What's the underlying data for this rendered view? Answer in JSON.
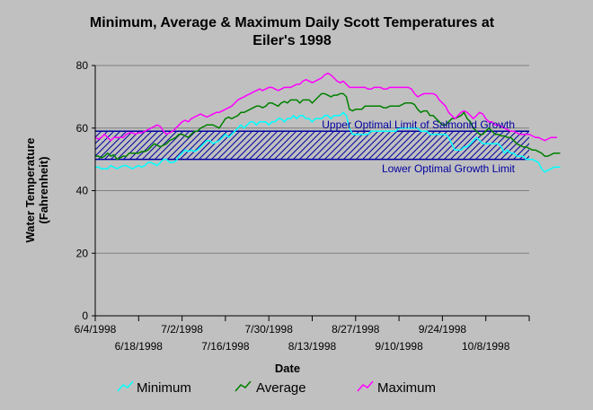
{
  "chart_data": {
    "type": "line",
    "title_lines": [
      "Minimum, Average & Maximum Daily Scott Temperatures at",
      "Eiler's 1998"
    ],
    "xlabel": "Date",
    "ylabel_lines": [
      "Water Temperature",
      "(Fahrenheit)"
    ],
    "ylim": [
      0,
      80
    ],
    "y_ticks": [
      0,
      20,
      40,
      60,
      80
    ],
    "x_start": "6/4/1998",
    "x_end": "10/22/1998",
    "x_ticks_upper": [
      "6/4/1998",
      "7/2/1998",
      "7/30/1998",
      "8/27/1998",
      "9/24/1998"
    ],
    "x_ticks_lower": [
      "6/18/1998",
      "7/16/1998",
      "8/13/1998",
      "9/10/1998",
      "10/8/1998"
    ],
    "grid": "horizontal",
    "reference_band": {
      "upper": 59,
      "lower": 50,
      "upper_label": "Upper Optimal Limit of Salmonid Growth",
      "lower_label": "Lower Optimal Growth Limit",
      "color": "#0000a0"
    },
    "series": [
      {
        "name": "Minimum",
        "color": "#00ffff",
        "values": [
          47.5,
          47.5,
          47,
          47,
          47,
          48,
          47.5,
          47,
          47.5,
          48,
          48,
          47.5,
          47,
          47.5,
          48,
          47.5,
          48,
          49,
          49,
          48.5,
          48,
          49,
          50,
          50,
          49,
          49,
          49.5,
          51,
          52,
          53,
          52.5,
          53,
          52.5,
          53,
          54,
          55,
          56,
          56,
          55,
          55.5,
          56,
          57,
          58,
          57,
          58,
          59,
          60,
          61,
          60,
          61,
          62,
          62,
          61,
          62,
          62,
          62,
          61,
          62,
          62,
          63,
          63,
          62,
          63,
          63,
          64,
          63,
          64,
          64,
          63,
          63,
          62,
          63,
          63,
          63,
          64,
          64,
          63,
          64,
          64,
          64,
          65,
          64,
          60,
          58,
          58,
          58,
          58,
          58,
          58,
          59,
          59,
          59,
          59,
          59,
          59,
          59,
          59,
          59,
          60,
          60,
          60,
          60,
          60,
          60,
          60,
          59,
          59,
          59,
          58,
          58,
          58,
          58,
          58,
          58,
          57,
          55,
          53,
          53,
          53,
          54,
          54,
          55,
          56,
          57,
          56,
          55,
          55,
          55,
          55,
          55,
          55,
          54,
          52,
          53,
          52,
          52,
          51,
          51,
          51,
          50,
          50,
          50,
          49.5,
          49,
          47,
          46,
          46.5,
          47,
          47.5,
          47.5,
          47.5
        ]
      },
      {
        "name": "Average",
        "color": "#008000",
        "values": [
          51,
          51,
          50.5,
          51,
          52,
          51,
          51.5,
          50,
          50.5,
          51,
          51,
          52,
          52,
          52,
          52,
          52.5,
          52.5,
          53,
          54,
          55,
          54.5,
          54,
          54.5,
          55,
          56,
          56.5,
          57,
          58,
          58,
          57.5,
          57,
          58,
          59,
          59,
          60,
          60.5,
          61,
          61,
          61,
          60.5,
          60,
          61.5,
          63,
          63.5,
          63,
          63.5,
          64,
          65,
          65,
          65.5,
          66,
          66.5,
          67,
          67,
          66.5,
          67,
          68,
          68,
          67.5,
          67,
          68,
          68.5,
          68,
          69,
          69,
          69,
          68,
          69,
          69,
          69,
          68,
          69,
          70,
          71,
          71,
          70.5,
          70,
          70.5,
          70.5,
          71,
          71,
          70,
          66,
          65.5,
          66,
          66,
          66,
          67,
          67,
          67,
          67,
          67,
          67,
          66.5,
          66.5,
          67,
          67,
          67,
          67,
          67.5,
          68,
          68,
          68,
          67.5,
          66,
          65,
          65.5,
          65.5,
          64,
          64,
          63,
          62,
          61,
          61,
          62,
          63,
          63,
          63.5,
          64,
          65,
          63,
          62,
          60,
          59,
          58,
          58,
          59,
          60,
          59,
          58,
          58,
          57.5,
          57.5,
          57,
          57,
          56,
          55,
          54.5,
          54,
          54,
          53.5,
          53,
          53,
          52.5,
          52,
          51,
          51,
          51.5,
          52,
          52,
          52
        ]
      },
      {
        "name": "Maximum",
        "color": "#ff00ff",
        "values": [
          57,
          56.5,
          57,
          58,
          57,
          56,
          57,
          57,
          57,
          57,
          58,
          58.5,
          58.5,
          58,
          58.5,
          58.5,
          59,
          59.5,
          60,
          60.5,
          61,
          60.5,
          59,
          58,
          58.5,
          59,
          60,
          61,
          62,
          62.5,
          62,
          63,
          63.5,
          64,
          64.5,
          64,
          63.5,
          64,
          64.5,
          65,
          65,
          65.5,
          66,
          66.5,
          67,
          68,
          69,
          69.5,
          70,
          70.5,
          71,
          71.5,
          72,
          72.5,
          72,
          72.5,
          73,
          73,
          72.5,
          72,
          72.5,
          73,
          73,
          73,
          73.5,
          74,
          74,
          75,
          75.5,
          75,
          74.5,
          75,
          75.5,
          76,
          77,
          77.5,
          77,
          76,
          75,
          74.5,
          75,
          74,
          73,
          73,
          73,
          73,
          73,
          73,
          72.5,
          72.5,
          73,
          73,
          73,
          72.5,
          72.5,
          73,
          73,
          73,
          73,
          73,
          73,
          73,
          72.5,
          71,
          70,
          70.5,
          71,
          71,
          71,
          71,
          70.5,
          69,
          68,
          67,
          65,
          64,
          63,
          64,
          65,
          65.5,
          65,
          64,
          63,
          64,
          65,
          64.5,
          63,
          62,
          62,
          61,
          61,
          60.5,
          60,
          59.5,
          59,
          59,
          58.5,
          58,
          58,
          58,
          58,
          57.5,
          57,
          57,
          56.5,
          56,
          56.5,
          57,
          57,
          57
        ]
      }
    ]
  },
  "legend": {
    "items": [
      {
        "label": "Minimum",
        "color": "#00ffff"
      },
      {
        "label": "Average",
        "color": "#008000"
      },
      {
        "label": "Maximum",
        "color": "#ff00ff"
      }
    ]
  }
}
